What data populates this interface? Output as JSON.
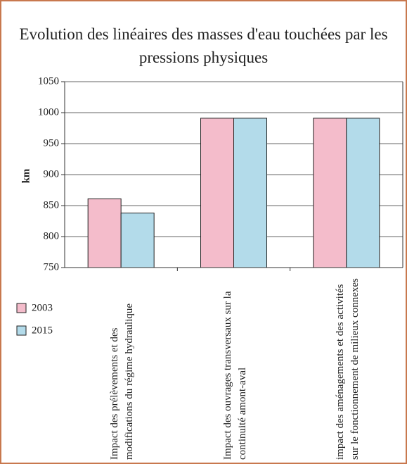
{
  "chart_data": {
    "type": "bar",
    "title": "Evolution des linéaires des masses d'eau touchées par les pressions physiques",
    "y_label": "km",
    "categories": [
      "Impact des prélèvements et des modifications du régime hydraulique",
      "Impact des ouvrages transversaux sur la continuité amont-aval",
      "impact des aménagements et des activités sur le fonctionnement de milieux connexes"
    ],
    "series": [
      {
        "name": "2003",
        "color": "#f4bccb",
        "values": [
          861,
          991,
          991
        ]
      },
      {
        "name": "2015",
        "color": "#b3dbea",
        "values": [
          838,
          991,
          991
        ]
      }
    ],
    "ylim": [
      750,
      1050
    ],
    "yticks": [
      750,
      800,
      850,
      900,
      950,
      1000,
      1050
    ],
    "grid": true,
    "legend": "left"
  }
}
